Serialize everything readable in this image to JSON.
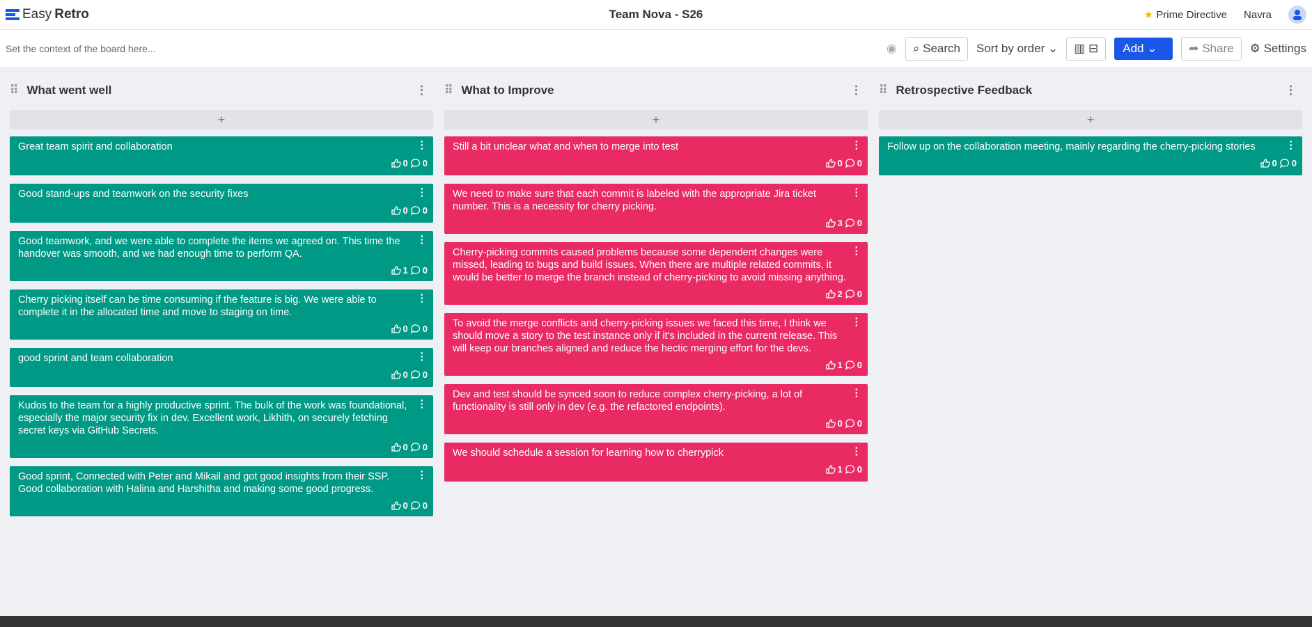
{
  "header": {
    "logo_easy": "Easy",
    "logo_retro": "Retro",
    "title": "Team Nova - S26",
    "prime_directive": "Prime Directive",
    "user": "Navra"
  },
  "toolbar": {
    "context_placeholder": "Set the context of the board here...",
    "search": "Search",
    "sort": "Sort by order",
    "add": "Add",
    "share": "Share",
    "settings": "Settings"
  },
  "columns": [
    {
      "title": "What went well",
      "color": "#009985",
      "cards": [
        {
          "text": "Great team spirit and collaboration",
          "likes": 0,
          "comments": 0
        },
        {
          "text": "Good stand-ups and teamwork on the security fixes",
          "likes": 0,
          "comments": 0
        },
        {
          "text": "Good teamwork, and we were able to complete the items we agreed on. This time the handover was smooth, and we had enough time to perform QA.",
          "likes": 1,
          "comments": 0
        },
        {
          "text": "Cherry picking itself can be time consuming if the feature is big. We were able to complete it in the allocated time and move to staging on time.",
          "likes": 0,
          "comments": 0
        },
        {
          "text": "good sprint and team collaboration",
          "likes": 0,
          "comments": 0
        },
        {
          "text": "Kudos to the team for a highly productive sprint. The bulk of the work was foundational, especially the major security fix in dev. Excellent work, Likhith, on securely fetching secret keys via GitHub Secrets.",
          "likes": 0,
          "comments": 0
        },
        {
          "text": "Good sprint, Connected with Peter and Mikail and got good insights from their SSP. Good collaboration with Halina and Harshitha and making some good progress.",
          "likes": 0,
          "comments": 0
        }
      ]
    },
    {
      "title": "What to Improve",
      "color": "#e92a63",
      "cards": [
        {
          "text": "Still a bit unclear what and when to merge into test",
          "likes": 0,
          "comments": 0
        },
        {
          "text": "We need to make sure that each commit is labeled with the appropriate Jira ticket number. This is a necessity for cherry picking.",
          "likes": 3,
          "comments": 0
        },
        {
          "text": "Cherry-picking commits caused problems because some dependent changes were missed, leading to bugs and build issues. When there are multiple related commits, it would be better to merge the branch instead of cherry-picking to avoid missing anything.",
          "likes": 2,
          "comments": 0
        },
        {
          "text": "To avoid the merge conflicts and cherry-picking issues we faced this time, I think we should move a story to the test instance only if it's included in the current release. This will keep our branches aligned and reduce the hectic merging effort for the devs.",
          "likes": 1,
          "comments": 0
        },
        {
          "text": "Dev and test should be synced soon to reduce complex cherry-picking, a lot of functionality is still only in dev (e.g. the refactored endpoints).",
          "likes": 0,
          "comments": 0
        },
        {
          "text": "We should schedule a session for learning how to cherrypick",
          "likes": 1,
          "comments": 0
        }
      ]
    },
    {
      "title": "Retrospective Feedback",
      "color": "#009985",
      "cards": [
        {
          "text": "Follow up on the collaboration meeting, mainly regarding the cherry-picking stories",
          "likes": 0,
          "comments": 0
        }
      ]
    }
  ]
}
